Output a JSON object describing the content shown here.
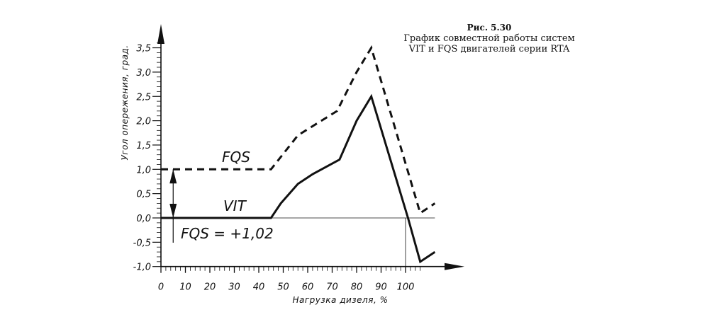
{
  "caption": {
    "number": "Рис. 5.30",
    "line1": "График совместной работы систем",
    "line2": "VIT и FQS двигателей серии RTA"
  },
  "chart_data": {
    "type": "line",
    "xlabel": "Нагрузка дизеля, %",
    "ylabel": "Угол опережения, град.",
    "xlim": [
      0,
      115
    ],
    "ylim": [
      -1.0,
      3.8
    ],
    "x_ticks": [
      "0",
      "10",
      "20",
      "30",
      "40",
      "50",
      "60",
      "70",
      "80",
      "90",
      "100"
    ],
    "y_ticks": [
      "-1,0",
      "-0,5",
      "0,0",
      "0,5",
      "1,0",
      "1,5",
      "2,0",
      "2,5",
      "3,0",
      "3,5"
    ],
    "grid": false,
    "series": [
      {
        "name": "FQS",
        "style": "dashed",
        "x": [
          0,
          45,
          56,
          72,
          80,
          86,
          106,
          112
        ],
        "y": [
          1.0,
          1.0,
          1.7,
          2.2,
          3.0,
          3.5,
          0.1,
          0.3
        ]
      },
      {
        "name": "VIT",
        "style": "solid",
        "x": [
          0,
          45,
          49,
          56,
          62,
          73,
          80,
          86,
          101,
          106,
          112
        ],
        "y": [
          0,
          0,
          0.3,
          0.7,
          0.9,
          1.2,
          2.0,
          2.5,
          0,
          -0.9,
          -0.7
        ]
      }
    ],
    "annotations": [
      {
        "text": "FQS = +1,02",
        "x": 5,
        "from_y": 0,
        "to_y": 1.0
      }
    ],
    "reference_line_x": 100
  }
}
